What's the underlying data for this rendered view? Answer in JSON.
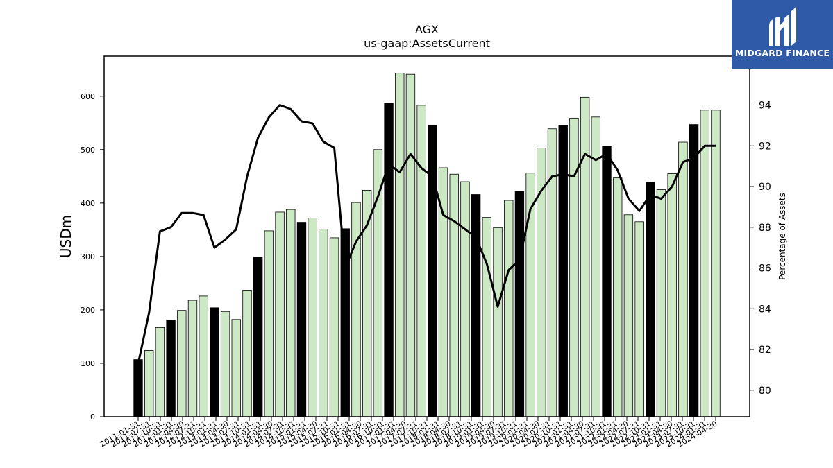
{
  "logo": {
    "text": "MIDGARD FINANCE"
  },
  "chart_data": {
    "type": "bar",
    "title": "AGX",
    "subtitle": "us-gaap:AssetsCurrent",
    "ylabel": "USDm",
    "y2label": "Percentage of Assets",
    "ylim": [
      0,
      675
    ],
    "y2lim": [
      78.7,
      96.4
    ],
    "yticks": [
      0,
      100,
      200,
      300,
      400,
      500,
      600
    ],
    "y2ticks": [
      80,
      82,
      84,
      86,
      88,
      90,
      92,
      94
    ],
    "colors": {
      "bar_annual": "#000000",
      "bar_quarter": "#cce8c4",
      "line": "#000000"
    },
    "categories": [
      "2011-01-31",
      "2011-04-30",
      "2011-07-31",
      "2011-10-31",
      "2012-01-31",
      "2012-04-30",
      "2012-07-31",
      "2012-10-31",
      "2013-01-31",
      "2013-04-30",
      "2013-07-31",
      "2013-10-31",
      "2014-01-31",
      "2014-04-30",
      "2014-07-31",
      "2014-10-31",
      "2015-01-31",
      "2015-04-30",
      "2015-07-31",
      "2015-10-31",
      "2016-01-31",
      "2016-04-30",
      "2016-07-31",
      "2016-10-31",
      "2017-01-31",
      "2017-04-30",
      "2017-07-31",
      "2017-10-31",
      "2018-01-31",
      "2018-04-30",
      "2018-07-31",
      "2018-10-31",
      "2019-01-31",
      "2019-04-30",
      "2019-07-31",
      "2019-10-31",
      "2020-01-31",
      "2020-04-30",
      "2020-07-31",
      "2020-10-31",
      "2021-01-31",
      "2021-04-30",
      "2021-07-31",
      "2021-10-31",
      "2022-01-31",
      "2022-04-30",
      "2022-07-31",
      "2022-10-31",
      "2023-01-31",
      "2023-04-30",
      "2023-07-31",
      "2023-10-31",
      "2024-01-31",
      "2024-04-30"
    ],
    "xtick_labels": [
      "2011-01-31",
      "2011-07-31",
      "2011-10-31",
      "2012-01-31",
      "2012-04-30",
      "2012-07-31",
      "2012-10-31",
      "2013-01-31",
      "2013-04-30",
      "2013-07-31",
      "2013-10-31",
      "2014-01-31",
      "2014-04-30",
      "2014-07-31",
      "2014-10-31",
      "2015-01-31",
      "2015-04-30",
      "2015-07-31",
      "2015-10-31",
      "2016-01-31",
      "2016-04-30",
      "2016-07-31",
      "2016-10-31",
      "2017-01-31",
      "2017-04-30",
      "2017-07-31",
      "2017-10-31",
      "2018-01-31",
      "2018-04-30",
      "2018-07-31",
      "2018-10-31",
      "2019-01-31",
      "2019-04-30",
      "2019-07-31",
      "2019-10-31",
      "2020-01-31",
      "2020-04-30",
      "2020-07-31",
      "2020-10-31",
      "2021-01-31",
      "2021-04-30",
      "2021-07-31",
      "2021-10-31",
      "2022-01-31",
      "2022-04-30",
      "2022-07-31",
      "2022-10-31",
      "2023-01-31",
      "2023-04-30",
      "2023-07-31",
      "2023-10-31",
      "2024-01-31",
      "2024-04-30"
    ],
    "annual_flags": [
      1,
      0,
      0,
      1,
      0,
      0,
      0,
      1,
      0,
      0,
      0,
      1,
      0,
      0,
      0,
      1,
      0,
      0,
      0,
      1,
      0,
      0,
      0,
      1,
      0,
      0,
      0,
      1,
      0,
      0,
      0,
      1,
      0,
      0,
      0,
      1,
      0,
      0,
      0,
      1,
      0,
      0,
      0,
      1,
      0,
      0,
      0,
      1,
      0,
      0,
      0,
      1,
      0,
      0
    ],
    "values": [
      107,
      124,
      167,
      181,
      199,
      218,
      226,
      204,
      197,
      182,
      237,
      299,
      348,
      383,
      388,
      364,
      372,
      351,
      335,
      352,
      401,
      424,
      500,
      587,
      643,
      641,
      583,
      546,
      466,
      454,
      440,
      416,
      373,
      354,
      405,
      422,
      456,
      503,
      539,
      546,
      559,
      598,
      561,
      507,
      447,
      378,
      365,
      439,
      425,
      455,
      514,
      547,
      574,
      574
    ],
    "line_values": [
      81.3,
      83.8,
      87.8,
      88.0,
      88.7,
      88.7,
      88.6,
      87.0,
      87.4,
      87.9,
      90.5,
      92.4,
      93.4,
      94.0,
      93.8,
      93.2,
      93.1,
      92.2,
      91.9,
      86.0,
      87.3,
      88.1,
      89.5,
      91.1,
      90.7,
      91.6,
      90.9,
      90.5,
      88.6,
      88.3,
      87.9,
      87.5,
      86.2,
      84.1,
      85.9,
      86.4,
      88.9,
      89.8,
      90.5,
      90.6,
      90.5,
      91.6,
      91.3,
      91.6,
      90.8,
      89.4,
      88.8,
      89.6,
      89.4,
      90.0,
      91.2,
      91.4,
      92.0,
      92.0
    ]
  }
}
